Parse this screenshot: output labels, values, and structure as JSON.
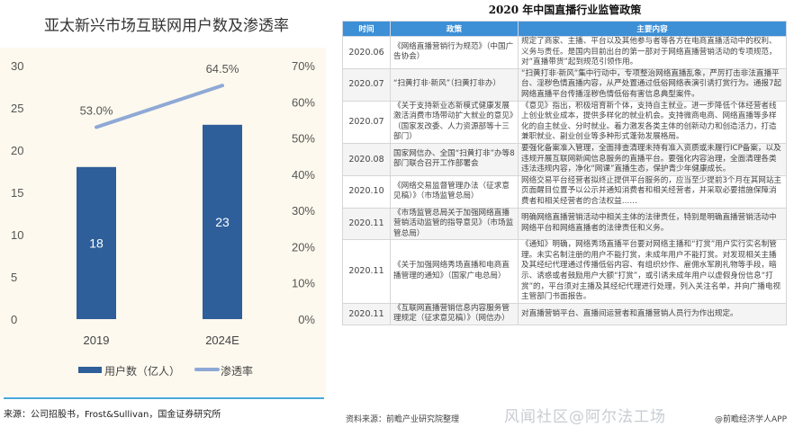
{
  "chart_data": {
    "type": "bar+line",
    "title": "亚太新兴市场互联网用户数及渗透率",
    "categories": [
      "2019",
      "2024E"
    ],
    "series": [
      {
        "name": "用户数（亿人）",
        "type": "bar",
        "axis": "left",
        "values": [
          18,
          23
        ],
        "labels": [
          "18",
          "23"
        ],
        "color": "#2e5f9a"
      },
      {
        "name": "渗透率",
        "type": "line",
        "axis": "right",
        "values": [
          53.0,
          64.5
        ],
        "labels": [
          "53.0%",
          "64.5%"
        ],
        "color": "#8fa9d6"
      }
    ],
    "left_axis": {
      "ylim": [
        0,
        30
      ],
      "ticks": [
        "0",
        "5",
        "10",
        "15",
        "20",
        "25",
        "30"
      ]
    },
    "right_axis": {
      "ylim": [
        0,
        70
      ],
      "ticks": [
        "0%",
        "10%",
        "20%",
        "30%",
        "40%",
        "50%",
        "60%",
        "70%"
      ]
    },
    "legend": "bottom",
    "grid": false,
    "source": "来源：公司招股书，Frost&Sullivan，国金证券研究所"
  },
  "policy_table": {
    "title": "2020 年中国直播行业监管政策",
    "headers": [
      "时间",
      "政策",
      "主要内容"
    ],
    "rows": [
      {
        "time": "2020.06",
        "policy": "《网络直播营销行为规范》（中国广告协会）",
        "content": "规定了商家、主播、平台以及其他参与者等各方在电商直播活动中的权利、义务与责任。是国内目前出台的第一部对于网络直播营销活动的专项规范，对“直播带货”起到规范引领作用。"
      },
      {
        "time": "2020.07",
        "policy": "“扫黄打非·新风”（扫黄打非办）",
        "content": "“扫黄打非·新风”集中行动中，专项整治网络直播乱象，严厉打击非法直播平台、淫秽色情直播内容，从严处置通过低俗网络表演引诱打赏行为。通报7起网络直播平台传播淫秽色情低俗有害信息典型案件。"
      },
      {
        "time": "2020.07",
        "policy": "《关于支持新业态新模式健康发展激活消费市场带动扩大就业的意见》（国家发改委、人力资源部等十三部门）",
        "content": "《意见》指出，积极培育新个体，支持自主就业。进一步降低个体经营者线上创业就业成本，提供多样化的就业机会。支持微商电商、网络直播等多样化的自主就业、分时就业。着力激发各类主体的创新动力和创造活力，打造兼职就业、副业创业等多种形式蓬勃发展格局。"
      },
      {
        "time": "2020.08",
        "policy": "国家网信办、全国“扫黄打非”办等8部门联合召开工作部署会",
        "content": "要强化备案准入管理，全面排查清理未持有准入资质或未履行ICP备案，以及违规开展互联网新闻信息服务的直播平台。要强化内容治理，全面清理各类违法违规内容，净化“网课”直播生态，保护青少年健康成长。"
      },
      {
        "time": "2020.10",
        "policy": "《网络交易监督管理办法（征求意见稿）》（市场监管总局）",
        "content": "网络交易平台经营者拟终止提供平台服务的，应当至少提前3个月在其网站主页面醒目位置予以公示并通知消费者和相关经营者，并采取必要措施保障消费者和相关经营者的合法权益……"
      },
      {
        "time": "2020.11",
        "policy": "《市场监管总局关于加强网络直播营销活动监管的指导意见》（市场监管总局）",
        "content": "明确网络直播营销活动中相关主体的法律责任，特别是明确直播营销活动中网络平台和网络直播者的法律责任和义务。"
      },
      {
        "time": "2020.11",
        "policy": "《关于加强网络秀场直播和电商直播管理的通知》（国家广电总局）",
        "content": "《通知》明确，网络秀场直播平台要对网络主播和“打赏”用户实行实名制管理。未实名制注册的用户不能打赏，未成年用户不能打赏。对发现相关主播及其经纪代理通过传播低俗内容、有组织炒作、雇佣水军刷礼物等手段，暗示、诱惑或者鼓励用户大额“打赏”，或引诱未成年用户以虚假身份信息“打赏”的，平台须对主播及其经纪代理进行处理，列入关注名单，并向广播电视主管部门书面报告。"
      },
      {
        "time": "2020.11",
        "policy": "《互联网直播营销信息内容服务管理规定（征求意见稿）》（网信办）",
        "content": "对直播营销平台、直播间运营者和直播营销人员行为作出规定。"
      }
    ],
    "source": "资料来源：前瞻产业研究院整理",
    "credit": "@前瞻经济学人APP"
  },
  "watermark": "风闻社区@阿尔法工场",
  "colors": {
    "header": "#3d8fd6",
    "panel": "#fdf9ee",
    "rule": "#4aa8d8"
  }
}
